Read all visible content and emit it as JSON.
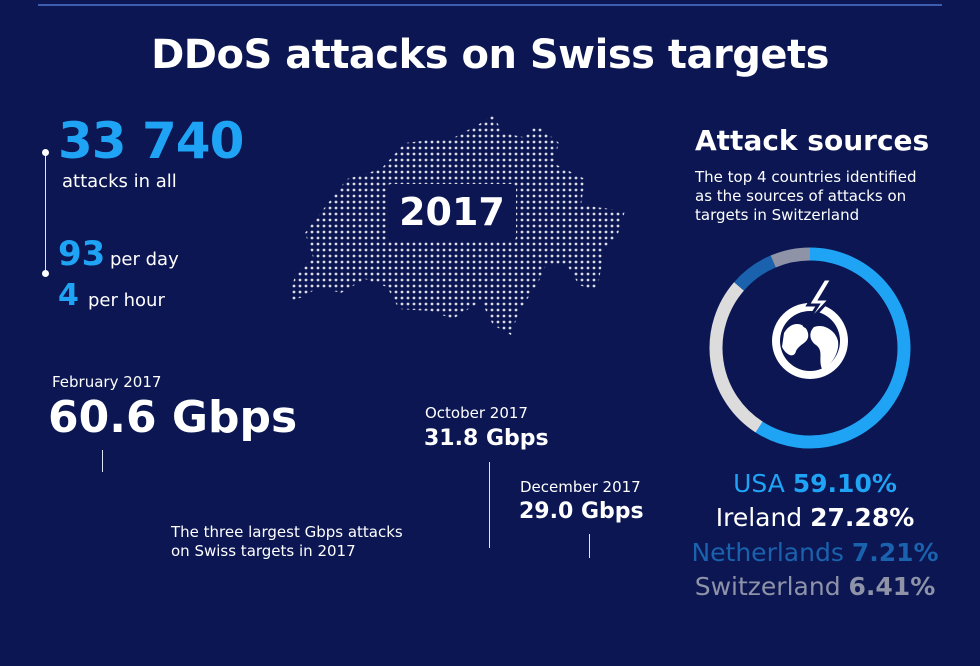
{
  "title": "DDoS attacks on Swiss targets",
  "year": "2017",
  "stats": {
    "total_value": "33 740",
    "total_label": "attacks in all",
    "per_day_value": "93",
    "per_day_label": "per day",
    "per_hour_value": "4",
    "per_hour_label": "per hour"
  },
  "largest_attacks": {
    "caption": "The three largest Gbps attacks on Swiss targets in 2017",
    "items": [
      {
        "date": "February 2017",
        "value": "60.6 Gbps"
      },
      {
        "date": "October 2017",
        "value": "31.8 Gbps"
      },
      {
        "date": "December 2017",
        "value": "29.0 Gbps"
      }
    ]
  },
  "sources": {
    "heading": "Attack sources",
    "description": "The top 4 countries identified as the sources of attacks on targets in Switzerland",
    "icon": "globe-lightning-icon"
  },
  "colors": {
    "background": "#0b1652",
    "accent": "#1fa3f5",
    "usa": "#1fa3f5",
    "ireland": "#ffffff",
    "netherlands": "#1a62ad",
    "switzerland": "#8e93a8",
    "ring_ireland": "#dcdcdc"
  },
  "chart_data": {
    "type": "pie",
    "title": "Attack sources",
    "categories": [
      "USA",
      "Ireland",
      "Netherlands",
      "Switzerland"
    ],
    "values": [
      59.1,
      27.28,
      7.21,
      6.41
    ],
    "labels": [
      "59.10%",
      "27.28%",
      "7.21%",
      "6.41%"
    ]
  }
}
